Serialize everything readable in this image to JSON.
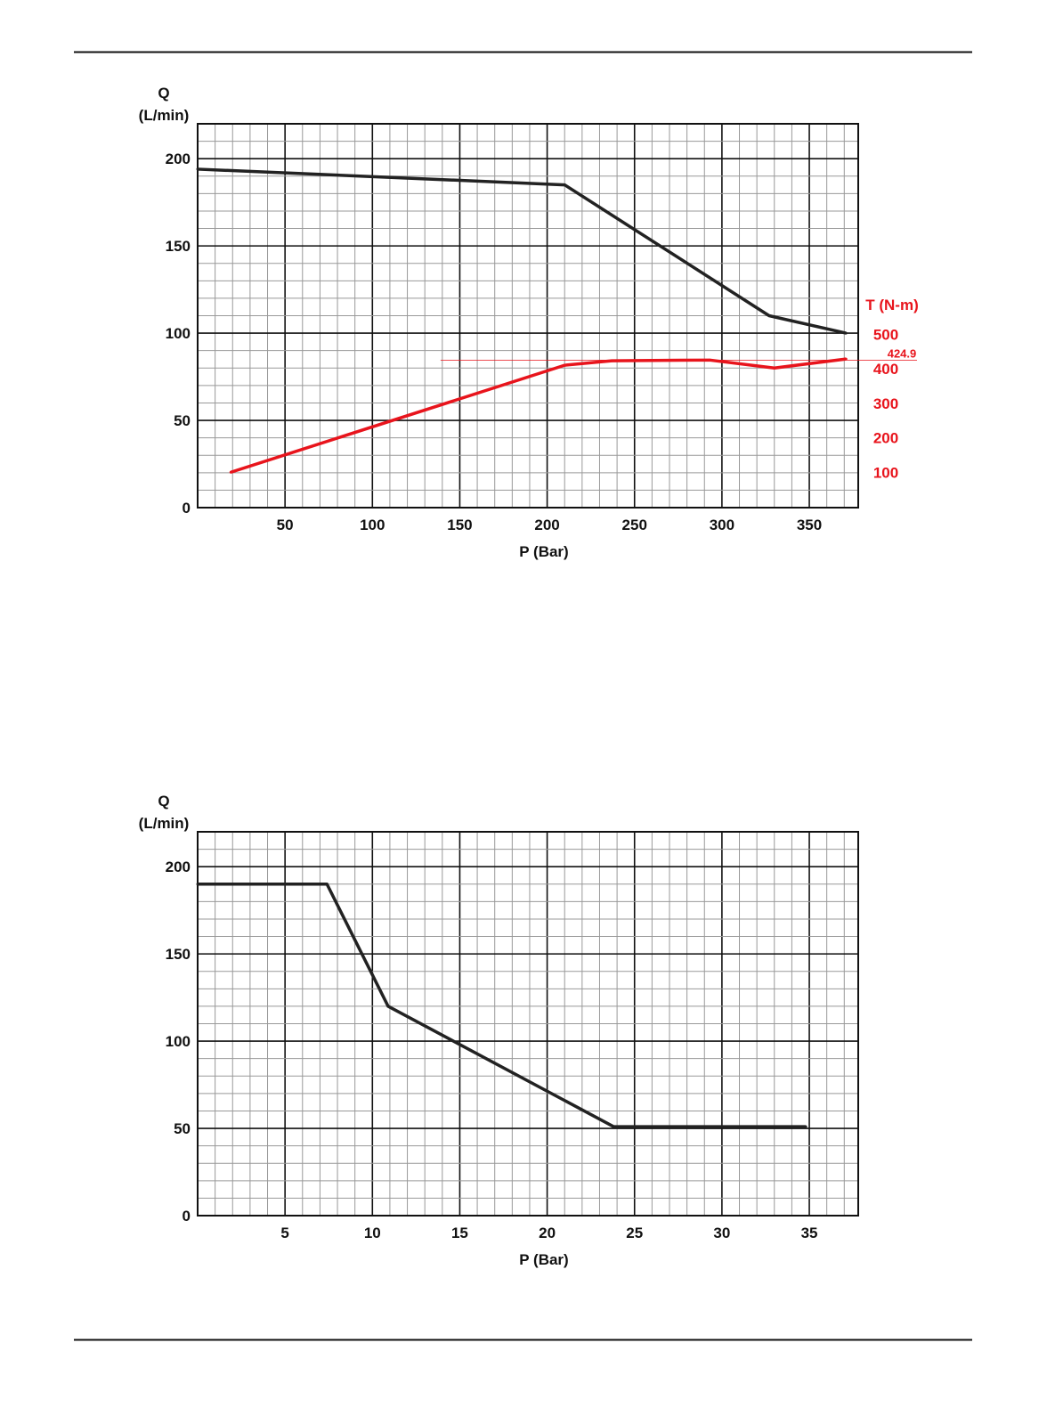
{
  "chart_data": [
    {
      "type": "line",
      "title": "",
      "xlabel": "P (Bar)",
      "ylabel_line1": "Q",
      "ylabel_line2": "(L/min)",
      "y2label": "T (N-m)",
      "xlim": [
        0,
        378
      ],
      "ylim": [
        0,
        220
      ],
      "y2lim": [
        0,
        565
      ],
      "grid": true,
      "xticks": [
        50,
        100,
        150,
        200,
        250,
        300,
        350
      ],
      "yticks": [
        0,
        50,
        100,
        150,
        200
      ],
      "y2ticks": [
        100,
        200,
        300,
        400,
        500
      ],
      "series": [
        {
          "name": "Q",
          "axis": "left",
          "color": "#222222",
          "x": [
            0,
            210,
            327,
            371
          ],
          "y": [
            194,
            185,
            110,
            100
          ]
        },
        {
          "name": "T",
          "axis": "right",
          "color": "#e8141c",
          "x": [
            19,
            210,
            237,
            293,
            330,
            371
          ],
          "y": [
            100,
            410,
            423,
            425,
            402,
            428
          ]
        }
      ],
      "annotations": [
        {
          "text": "424.9",
          "type": "hline",
          "axis": "right",
          "value": 424.9,
          "x_from": 139,
          "color": "#e8141c"
        }
      ]
    },
    {
      "type": "line",
      "title": "",
      "xlabel": "P (Bar)",
      "ylabel_line1": "Q",
      "ylabel_line2": "(L/min)",
      "xlim": [
        0,
        37.8
      ],
      "ylim": [
        0,
        220
      ],
      "grid": true,
      "xticks": [
        5,
        10,
        15,
        20,
        25,
        30,
        35
      ],
      "yticks": [
        0,
        50,
        100,
        150,
        200
      ],
      "series": [
        {
          "name": "Q",
          "axis": "left",
          "color": "#222222",
          "x": [
            0,
            7.4,
            10.9,
            23.8,
            34.8
          ],
          "y": [
            190,
            190,
            120,
            51,
            51
          ]
        }
      ]
    }
  ]
}
